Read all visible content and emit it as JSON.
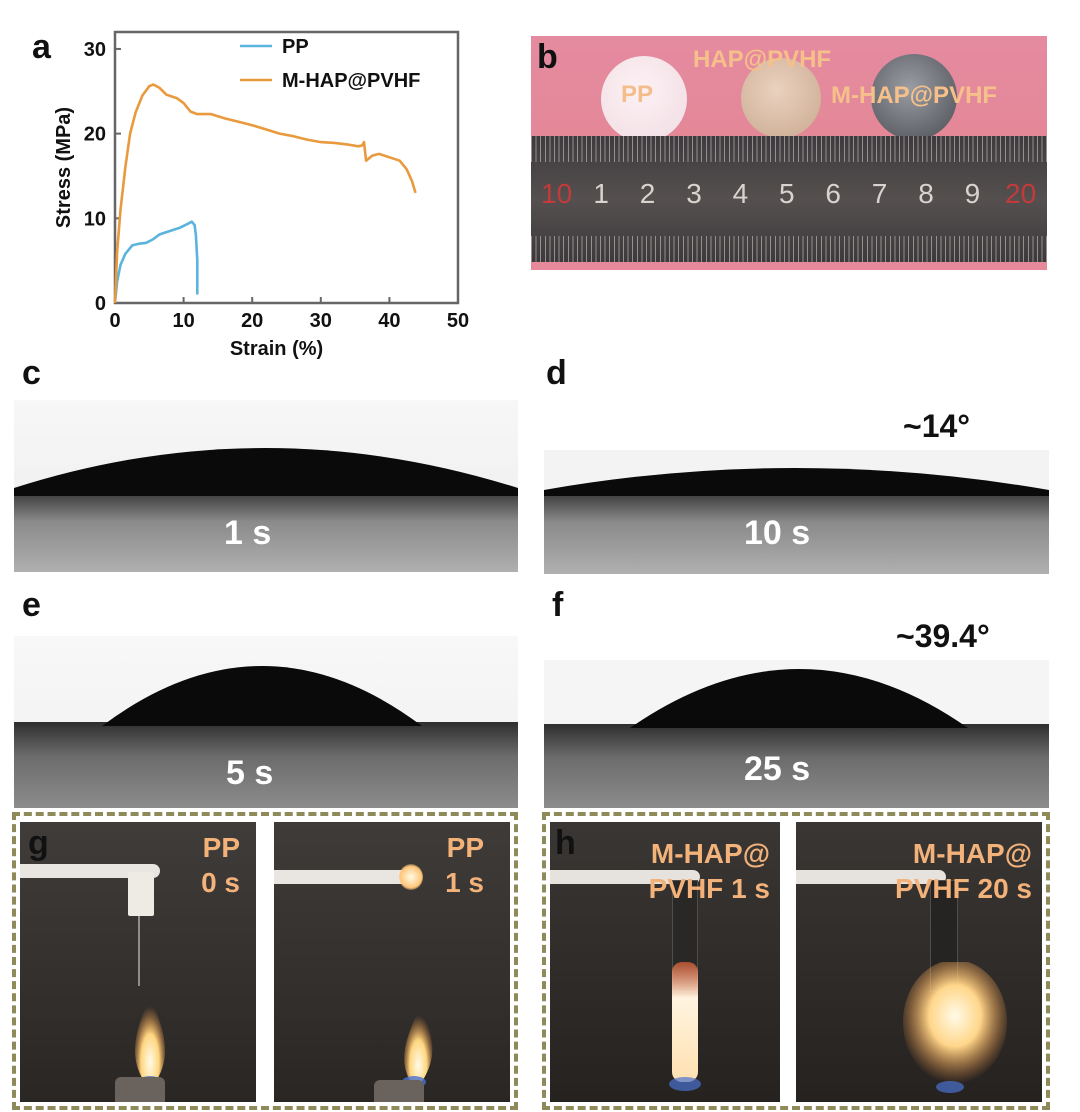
{
  "panel_labels": {
    "a": "a",
    "b": "b",
    "c": "c",
    "d": "d",
    "e": "e",
    "f": "f",
    "g": "g",
    "h": "h"
  },
  "chart_data": {
    "type": "line",
    "xlabel": "Strain (%)",
    "ylabel": "Stress (MPa)",
    "xlim": [
      0,
      50
    ],
    "ylim": [
      0,
      32
    ],
    "xticks": [
      0,
      10,
      20,
      30,
      40,
      50
    ],
    "yticks": [
      0,
      10,
      20,
      30
    ],
    "grid": false,
    "legend_position": "top-right",
    "series": [
      {
        "name": "PP",
        "color": "#5ab4dc",
        "points": [
          [
            0,
            0
          ],
          [
            0.3,
            2.5
          ],
          [
            0.8,
            4.5
          ],
          [
            1.5,
            5.8
          ],
          [
            2.5,
            6.8
          ],
          [
            3.5,
            7.0
          ],
          [
            4.5,
            7.1
          ],
          [
            5.5,
            7.5
          ],
          [
            6.5,
            8.1
          ],
          [
            8,
            8.5
          ],
          [
            9.5,
            8.9
          ],
          [
            10.5,
            9.3
          ],
          [
            11.2,
            9.6
          ],
          [
            11.6,
            9.2
          ],
          [
            11.8,
            8.0
          ],
          [
            12.0,
            5.0
          ],
          [
            12.0,
            1.0
          ]
        ]
      },
      {
        "name": "M-HAP@PVHF",
        "color": "#e89a3c",
        "points": [
          [
            0,
            0
          ],
          [
            0.3,
            6
          ],
          [
            0.8,
            11
          ],
          [
            1.5,
            16
          ],
          [
            2.2,
            20
          ],
          [
            3,
            22.5
          ],
          [
            4,
            24.5
          ],
          [
            5,
            25.6
          ],
          [
            5.6,
            25.8
          ],
          [
            6.5,
            25.4
          ],
          [
            7.5,
            24.6
          ],
          [
            9,
            24.2
          ],
          [
            10,
            23.6
          ],
          [
            11,
            22.6
          ],
          [
            12,
            22.3
          ],
          [
            14,
            22.3
          ],
          [
            16,
            21.8
          ],
          [
            18,
            21.4
          ],
          [
            20,
            21.0
          ],
          [
            22,
            20.5
          ],
          [
            24,
            20.0
          ],
          [
            26,
            19.7
          ],
          [
            28,
            19.3
          ],
          [
            30,
            19.0
          ],
          [
            32,
            18.9
          ],
          [
            34,
            18.7
          ],
          [
            35.5,
            18.5
          ],
          [
            36,
            18.6
          ],
          [
            36.3,
            19.0
          ],
          [
            36.6,
            16.8
          ],
          [
            37.5,
            17.4
          ],
          [
            38.5,
            17.6
          ],
          [
            40,
            17.2
          ],
          [
            41.5,
            16.8
          ],
          [
            42.5,
            15.8
          ],
          [
            43.3,
            14.4
          ],
          [
            43.8,
            13.0
          ]
        ]
      }
    ]
  },
  "photo_b": {
    "labels": {
      "pp": "PP",
      "hap": "HAP@PVHF",
      "mhap": "M-HAP@PVHF"
    },
    "ruler_numbers": [
      "10",
      "1",
      "2",
      "3",
      "4",
      "5",
      "6",
      "7",
      "8",
      "9",
      "20"
    ]
  },
  "contact_angle": {
    "c": {
      "time": "1 s"
    },
    "d": {
      "time": "10 s",
      "angle": "~14°"
    },
    "e": {
      "time": "5 s"
    },
    "f": {
      "time": "25 s",
      "angle": "~39.4°"
    }
  },
  "flame": {
    "g1": {
      "text": "PP\n0 s"
    },
    "g2": {
      "text": "PP\n1 s"
    },
    "h1": {
      "text": "M-HAP@\nPVHF 1 s"
    },
    "h2": {
      "text": "M-HAP@\nPVHF 20 s"
    }
  }
}
